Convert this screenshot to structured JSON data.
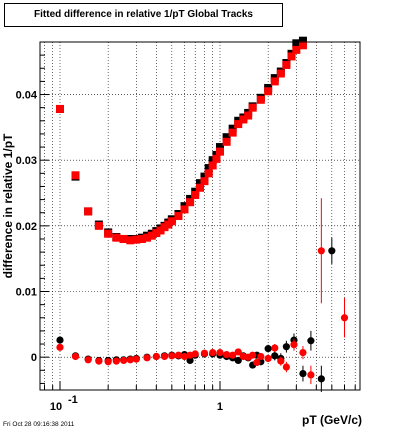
{
  "chart_data": {
    "type": "scatter",
    "title": "Fitted difference in relative 1/pT  Global Tracks",
    "xlabel": "pT (GeV/c)",
    "ylabel": "difference in relative 1/pT",
    "x_scale": "log",
    "xlim": [
      0.075,
      7.5
    ],
    "ylim": [
      -0.005,
      0.048
    ],
    "grid": true,
    "x_ticks": [
      {
        "value": 0.1,
        "base": "10",
        "exp": "-1"
      },
      {
        "value": 1,
        "label": "1"
      }
    ],
    "y_ticks": [
      0,
      0.01,
      0.02,
      0.03,
      0.04
    ],
    "y_tick_labels": [
      "0",
      "0.01",
      "0.02",
      "0.03",
      "0.04"
    ],
    "colors": {
      "black_series": "#000000",
      "red_series": "#ff0000"
    },
    "series": [
      {
        "marker": "square",
        "color": "#000000",
        "points": [
          [
            0.1,
            0.0378
          ],
          [
            0.125,
            0.0275
          ],
          [
            0.15,
            0.0222
          ],
          [
            0.175,
            0.0202
          ],
          [
            0.2,
            0.019
          ],
          [
            0.225,
            0.0183
          ],
          [
            0.25,
            0.018
          ],
          [
            0.275,
            0.018
          ],
          [
            0.3,
            0.018
          ],
          [
            0.325,
            0.0182
          ],
          [
            0.35,
            0.0185
          ],
          [
            0.375,
            0.0188
          ],
          [
            0.4,
            0.0192
          ],
          [
            0.425,
            0.0196
          ],
          [
            0.45,
            0.02
          ],
          [
            0.475,
            0.0205
          ],
          [
            0.5,
            0.021
          ],
          [
            0.55,
            0.0218
          ],
          [
            0.6,
            0.023
          ],
          [
            0.65,
            0.0241
          ],
          [
            0.7,
            0.0252
          ],
          [
            0.75,
            0.0265
          ],
          [
            0.8,
            0.0275
          ],
          [
            0.85,
            0.0288
          ],
          [
            0.9,
            0.03
          ],
          [
            0.95,
            0.0308
          ],
          [
            1.0,
            0.032
          ],
          [
            1.1,
            0.0335
          ],
          [
            1.2,
            0.0348
          ],
          [
            1.3,
            0.036
          ],
          [
            1.4,
            0.0365
          ],
          [
            1.5,
            0.0372
          ],
          [
            1.6,
            0.0382
          ],
          [
            1.8,
            0.0395
          ],
          [
            2.0,
            0.041
          ],
          [
            2.2,
            0.0425
          ],
          [
            2.4,
            0.0435
          ],
          [
            2.6,
            0.0448
          ],
          [
            2.8,
            0.0462
          ],
          [
            3.0,
            0.0478
          ],
          [
            3.3,
            0.0482
          ]
        ]
      },
      {
        "marker": "square",
        "color": "#ff0000",
        "points": [
          [
            0.1,
            0.0378
          ],
          [
            0.125,
            0.0277
          ],
          [
            0.15,
            0.0222
          ],
          [
            0.175,
            0.02
          ],
          [
            0.2,
            0.0188
          ],
          [
            0.225,
            0.0182
          ],
          [
            0.25,
            0.018
          ],
          [
            0.275,
            0.0178
          ],
          [
            0.3,
            0.0179
          ],
          [
            0.325,
            0.018
          ],
          [
            0.35,
            0.0182
          ],
          [
            0.375,
            0.0185
          ],
          [
            0.4,
            0.0189
          ],
          [
            0.425,
            0.0193
          ],
          [
            0.45,
            0.0198
          ],
          [
            0.475,
            0.0202
          ],
          [
            0.5,
            0.0207
          ],
          [
            0.55,
            0.0215
          ],
          [
            0.6,
            0.0225
          ],
          [
            0.65,
            0.0236
          ],
          [
            0.7,
            0.0247
          ],
          [
            0.75,
            0.0258
          ],
          [
            0.8,
            0.0268
          ],
          [
            0.85,
            0.028
          ],
          [
            0.9,
            0.0292
          ],
          [
            0.95,
            0.0302
          ],
          [
            1.0,
            0.0313
          ],
          [
            1.1,
            0.0328
          ],
          [
            1.2,
            0.0342
          ],
          [
            1.3,
            0.0355
          ],
          [
            1.4,
            0.0362
          ],
          [
            1.5,
            0.0368
          ],
          [
            1.6,
            0.038
          ],
          [
            1.8,
            0.0392
          ],
          [
            2.0,
            0.0405
          ],
          [
            2.2,
            0.042
          ],
          [
            2.4,
            0.0432
          ],
          [
            2.6,
            0.0445
          ],
          [
            2.8,
            0.0458
          ],
          [
            3.0,
            0.0468
          ],
          [
            3.3,
            0.0475
          ]
        ]
      },
      {
        "marker": "circle",
        "color": "#000000",
        "points": [
          [
            0.1,
            0.0026,
            0.0004
          ],
          [
            0.125,
            0.0002,
            0.0002
          ],
          [
            0.15,
            -0.0003,
            0
          ],
          [
            0.175,
            -0.0005,
            0
          ],
          [
            0.2,
            -0.0005,
            0
          ],
          [
            0.225,
            -0.0004,
            0
          ],
          [
            0.25,
            -0.0004,
            0
          ],
          [
            0.275,
            -0.0003,
            0
          ],
          [
            0.3,
            -0.0002,
            0
          ],
          [
            0.35,
            0.0,
            0
          ],
          [
            0.4,
            0.0001,
            0
          ],
          [
            0.45,
            0.0002,
            0
          ],
          [
            0.5,
            0.0003,
            0
          ],
          [
            0.55,
            0.0002,
            0
          ],
          [
            0.6,
            0.0004,
            0
          ],
          [
            0.65,
            -0.0005,
            0.0003
          ],
          [
            0.7,
            0.0003,
            0
          ],
          [
            0.8,
            0.0005,
            0
          ],
          [
            0.9,
            0.0005,
            0
          ],
          [
            1.0,
            0.0003,
            0
          ],
          [
            1.1,
            0.0001,
            0.0002
          ],
          [
            1.2,
            -0.0001,
            0.0002
          ],
          [
            1.3,
            -0.0005,
            0.0003
          ],
          [
            1.4,
            0.0002,
            0.0002
          ],
          [
            1.5,
            -0.0001,
            0.0003
          ],
          [
            1.6,
            -0.0012,
            0.0004
          ],
          [
            1.7,
            0.0003,
            0.0004
          ],
          [
            1.8,
            -0.0007,
            0.0005
          ],
          [
            2.0,
            0.0013,
            0.0006
          ],
          [
            2.2,
            0.0002,
            0.0007
          ],
          [
            2.4,
            -0.0002,
            0.0008
          ],
          [
            2.6,
            0.0016,
            0.0009
          ],
          [
            2.9,
            0.0026,
            0.001
          ],
          [
            3.3,
            -0.0025,
            0.0012
          ],
          [
            3.7,
            0.0025,
            0.0015
          ],
          [
            4.3,
            -0.0033,
            0.002
          ],
          [
            5.0,
            0.0162,
            0.002
          ]
        ]
      },
      {
        "marker": "circle",
        "color": "#ff0000",
        "points": [
          [
            0.1,
            0.0015,
            0.0003
          ],
          [
            0.125,
            0.0001,
            0.0002
          ],
          [
            0.15,
            -0.0004,
            0
          ],
          [
            0.175,
            -0.0006,
            0
          ],
          [
            0.2,
            -0.0007,
            0
          ],
          [
            0.225,
            -0.0006,
            0
          ],
          [
            0.25,
            -0.0005,
            0
          ],
          [
            0.275,
            -0.0004,
            0
          ],
          [
            0.3,
            -0.0003,
            0
          ],
          [
            0.35,
            -0.0001,
            0
          ],
          [
            0.4,
            0.0001,
            0
          ],
          [
            0.45,
            0.0001,
            0
          ],
          [
            0.5,
            0.0002,
            0
          ],
          [
            0.55,
            0.0003,
            0
          ],
          [
            0.6,
            0.0001,
            0
          ],
          [
            0.65,
            0.0003,
            0
          ],
          [
            0.7,
            0.0005,
            0
          ],
          [
            0.8,
            0.0006,
            0
          ],
          [
            0.9,
            0.0007,
            0
          ],
          [
            1.0,
            0.0007,
            0
          ],
          [
            1.1,
            0.0004,
            0.0002
          ],
          [
            1.2,
            0.0003,
            0.0002
          ],
          [
            1.3,
            0.0008,
            0.0003
          ],
          [
            1.4,
            0.0001,
            0.0002
          ],
          [
            1.5,
            0.0,
            0.0003
          ],
          [
            1.6,
            0.0003,
            0.0003
          ],
          [
            1.7,
            -0.0008,
            0.0004
          ],
          [
            1.8,
            0.0001,
            0.0005
          ],
          [
            2.0,
            -0.0002,
            0.0005
          ],
          [
            2.2,
            0.0014,
            0.0006
          ],
          [
            2.4,
            -0.0006,
            0.0007
          ],
          [
            2.6,
            -0.0015,
            0.0008
          ],
          [
            2.9,
            0.0019,
            0.0009
          ],
          [
            3.3,
            0.0007,
            0.001
          ],
          [
            3.7,
            -0.0027,
            0.0014
          ],
          [
            4.3,
            0.0162,
            0.008
          ],
          [
            6.0,
            0.006,
            0.003
          ]
        ]
      }
    ]
  },
  "footer": {
    "timestamp": "Fri Oct 28 09:16:38 2011"
  }
}
